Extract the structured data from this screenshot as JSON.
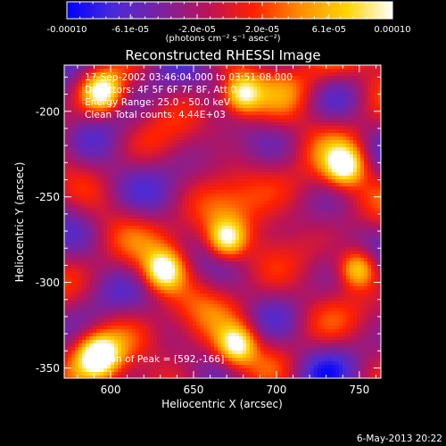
{
  "chart_data": {
    "type": "heatmap",
    "title": "Reconstructed RHESSI Image",
    "xlabel": "Heliocentric X (arcsec)",
    "ylabel": "Heliocentric Y (arcsec)",
    "xlim": [
      572,
      763
    ],
    "ylim": [
      -356,
      -173
    ],
    "xticks": [
      600,
      650,
      700,
      750
    ],
    "yticks": [
      -200,
      -250,
      -300,
      -350
    ],
    "colorbar": {
      "range": [
        -0.0001,
        0.0001
      ],
      "tick_values": [
        -0.0001,
        -6.1e-05,
        -2e-05,
        2e-05,
        6.1e-05,
        0.0001
      ],
      "tick_labels": [
        "-0.00010",
        "-6.1e-05",
        "-2.0e-05",
        "2.0e-05",
        "6.1e-05",
        "0.00010"
      ],
      "units_label": "(photons cm⁻² s⁻¹ asec⁻²)"
    },
    "annotations": {
      "time_range": "17-Sep-2002 03:46:04.000 to 03:51:08.000",
      "detectors": "Detectors: 4F 5F 6F 7F 8F, Att 0",
      "energy": "Energy Range: 25.0 - 50.0 keV",
      "clean": "Clean     Total counts: 4.44E+03",
      "peak": "Position of Peak = [592,-166]"
    },
    "colormap": [
      "#0000ff",
      "#4b2bd8",
      "#7a22a0",
      "#b8145a",
      "#ff2000",
      "#ff8c00",
      "#ffd400",
      "#ffffff"
    ],
    "notable_sources": [
      {
        "x": 595,
        "y": -189,
        "level": "bright"
      },
      {
        "x": 679,
        "y": -190,
        "level": "bright"
      },
      {
        "x": 593,
        "y": -343,
        "level": "bright"
      },
      {
        "x": 676,
        "y": -337,
        "level": "bright"
      },
      {
        "x": 670,
        "y": -275,
        "level": "bright"
      },
      {
        "x": 632,
        "y": -293,
        "level": "bright"
      },
      {
        "x": 741,
        "y": -232,
        "level": "bright"
      },
      {
        "x": 749,
        "y": -292,
        "level": "bright"
      }
    ]
  },
  "footer": {
    "date": "6-May-2013 20:22"
  }
}
